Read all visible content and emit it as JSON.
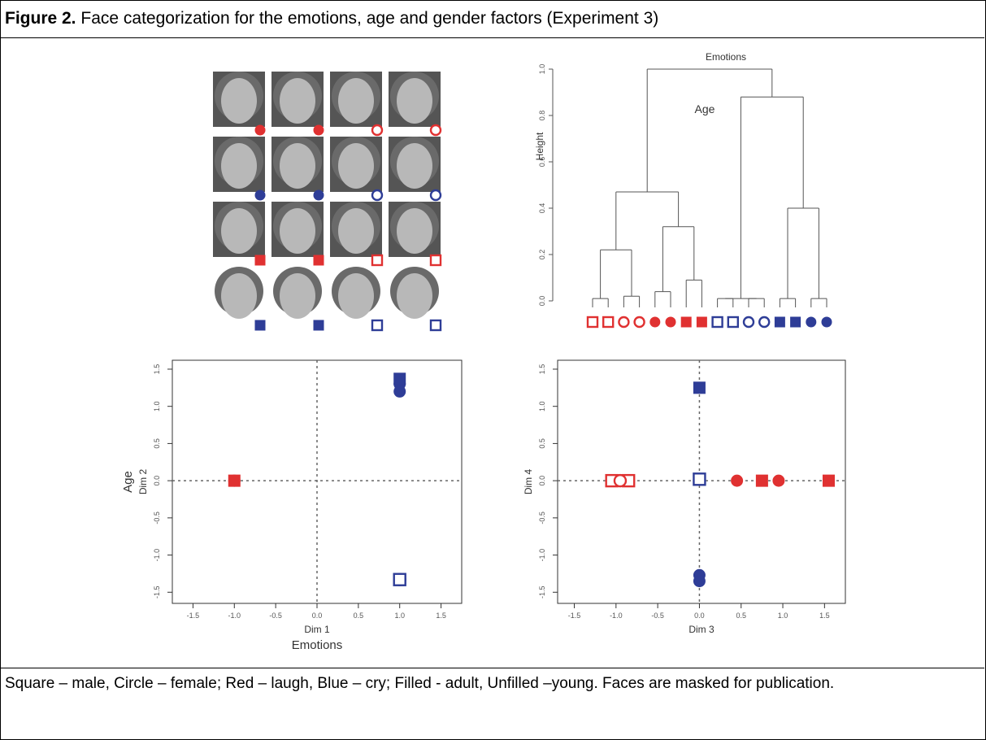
{
  "figure_label": "Figure 2.",
  "figure_title": "Face categorization for the emotions, age and gender factors (Experiment 3)",
  "caption": "Square – male, Circle – female; Red – laugh, Blue – cry; Filled - adult, Unfilled –young. Faces are masked for publication.",
  "dendrogram": {
    "y_label": "Height",
    "ylim": [
      0,
      1.0
    ],
    "yticks": [
      {
        "value": 0,
        "label": "0.0"
      },
      0.2,
      0.4,
      0.6,
      0.8,
      {
        "value": 1,
        "label": "1.0"
      }
    ],
    "annotations": [
      "Emotions",
      "Age"
    ],
    "tree": {
      "height": 1.0,
      "children": [
        {
          "height": 0.47,
          "children": [
            {
              "height": 0.22,
              "children": [
                {
                  "height": 0.01,
                  "children": [
                    {
                      "shape": "square",
                      "color": "#e03131",
                      "filled": false
                    },
                    {
                      "shape": "square",
                      "color": "#e03131",
                      "filled": false
                    }
                  ]
                },
                {
                  "height": 0.02,
                  "children": [
                    {
                      "shape": "circle",
                      "color": "#e03131",
                      "filled": false
                    },
                    {
                      "shape": "circle",
                      "color": "#e03131",
                      "filled": false
                    }
                  ]
                }
              ]
            },
            {
              "height": 0.32,
              "children": [
                {
                  "height": 0.04,
                  "children": [
                    {
                      "shape": "circle",
                      "color": "#e03131",
                      "filled": true
                    },
                    {
                      "shape": "circle",
                      "color": "#e03131",
                      "filled": true
                    }
                  ]
                },
                {
                  "height": 0.09,
                  "children": [
                    {
                      "shape": "square",
                      "color": "#e03131",
                      "filled": true
                    },
                    {
                      "shape": "square",
                      "color": "#e03131",
                      "filled": true
                    }
                  ]
                }
              ]
            }
          ]
        },
        {
          "height": 0.88,
          "children": [
            {
              "height": 0.01,
              "children": [
                {
                  "height": 0.01,
                  "children": [
                    {
                      "shape": "square",
                      "color": "#2e3d97",
                      "filled": false
                    },
                    {
                      "shape": "square",
                      "color": "#2e3d97",
                      "filled": false
                    }
                  ]
                },
                {
                  "height": 0.01,
                  "children": [
                    {
                      "shape": "circle",
                      "color": "#2e3d97",
                      "filled": false
                    },
                    {
                      "shape": "circle",
                      "color": "#2e3d97",
                      "filled": false
                    }
                  ]
                }
              ]
            },
            {
              "height": 0.4,
              "children": [
                {
                  "height": 0.01,
                  "children": [
                    {
                      "shape": "square",
                      "color": "#2e3d97",
                      "filled": true
                    },
                    {
                      "shape": "square",
                      "color": "#2e3d97",
                      "filled": true
                    }
                  ]
                },
                {
                  "height": 0.01,
                  "children": [
                    {
                      "shape": "circle",
                      "color": "#2e3d97",
                      "filled": true
                    },
                    {
                      "shape": "circle",
                      "color": "#2e3d97",
                      "filled": true
                    }
                  ]
                }
              ]
            }
          ]
        }
      ]
    }
  },
  "chart_data": [
    {
      "type": "scatter",
      "x_label": "Dim 1",
      "x_title": "Emotions",
      "y_label": "Dim 2",
      "y_title": "Age",
      "xlim": [
        -1.75,
        1.75
      ],
      "ylim": [
        -1.65,
        1.62
      ],
      "xticks": [
        -1.5,
        {
          "value": -1,
          "label": "-1.0"
        },
        -0.5,
        {
          "value": 0,
          "label": "0.0"
        },
        0.5,
        {
          "value": 1,
          "label": "1.0"
        },
        1.5
      ],
      "yticks": [
        -1.5,
        {
          "value": -1,
          "label": "-1.0"
        },
        -0.5,
        {
          "value": 0,
          "label": "0.0"
        },
        0.5,
        {
          "value": 1,
          "label": "1.0"
        },
        1.5
      ],
      "series": [
        {
          "color": "#e03131",
          "marker": "circle",
          "filled": true,
          "x": [
            -1
          ],
          "y": [
            0
          ]
        },
        {
          "color": "#e03131",
          "marker": "square",
          "filled": true,
          "x": [
            -1
          ],
          "y": [
            0
          ]
        },
        {
          "color": "#2e3d97",
          "marker": "circle",
          "filled": true,
          "x": [
            1,
            1
          ],
          "y": [
            1.3,
            1.2
          ]
        },
        {
          "color": "#2e3d97",
          "marker": "square",
          "filled": true,
          "x": [
            1
          ],
          "y": [
            1.37
          ]
        },
        {
          "color": "#2e3d97",
          "marker": "circle",
          "filled": false,
          "x": [
            1
          ],
          "y": [
            -1.33
          ]
        },
        {
          "color": "#2e3d97",
          "marker": "square",
          "filled": false,
          "x": [
            1
          ],
          "y": [
            -1.33
          ]
        }
      ]
    },
    {
      "type": "scatter",
      "x_label": "Dim 3",
      "y_label": "Dim 4",
      "xlim": [
        -1.7,
        1.75
      ],
      "ylim": [
        -1.65,
        1.62
      ],
      "xticks": [
        -1.5,
        {
          "value": -1,
          "label": "-1.0"
        },
        -0.5,
        {
          "value": 0,
          "label": "0.0"
        },
        0.5,
        {
          "value": 1,
          "label": "1.0"
        },
        1.5
      ],
      "yticks": [
        -1.5,
        {
          "value": -1,
          "label": "-1.0"
        },
        -0.5,
        {
          "value": 0,
          "label": "0.0"
        },
        0.5,
        {
          "value": 1,
          "label": "1.0"
        },
        1.5
      ],
      "series": [
        {
          "color": "#e03131",
          "marker": "square",
          "filled": false,
          "x": [
            -1.05,
            -0.85
          ],
          "y": [
            0,
            0
          ]
        },
        {
          "color": "#e03131",
          "marker": "circle",
          "filled": false,
          "x": [
            -0.95
          ],
          "y": [
            0
          ]
        },
        {
          "color": "#2e3d97",
          "marker": "square",
          "filled": false,
          "x": [
            0
          ],
          "y": [
            0.02
          ]
        },
        {
          "color": "#e03131",
          "marker": "circle",
          "filled": true,
          "x": [
            0.45,
            0.95
          ],
          "y": [
            0,
            0
          ]
        },
        {
          "color": "#e03131",
          "marker": "square",
          "filled": true,
          "x": [
            0.75,
            1.55
          ],
          "y": [
            0,
            0
          ]
        },
        {
          "color": "#2e3d97",
          "marker": "square",
          "filled": true,
          "x": [
            0
          ],
          "y": [
            1.25
          ]
        },
        {
          "color": "#2e3d97",
          "marker": "circle",
          "filled": true,
          "x": [
            0,
            0
          ],
          "y": [
            -1.27,
            -1.35
          ]
        }
      ]
    }
  ]
}
